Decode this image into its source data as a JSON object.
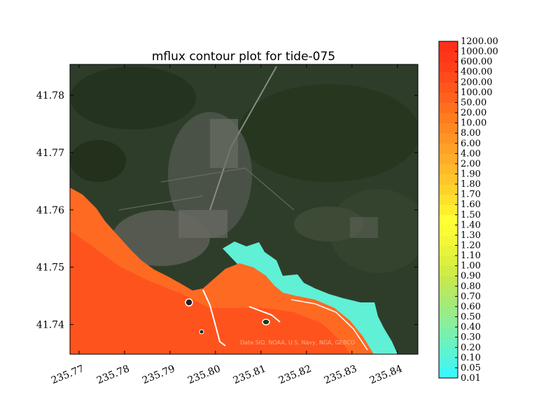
{
  "chart_data": {
    "type": "heatmap",
    "title": "mflux contour plot for tide-075",
    "xlabel": "",
    "ylabel": "",
    "xlim": [
      235.768,
      235.8445
    ],
    "ylim": [
      41.7348,
      41.7854
    ],
    "x_ticks": [
      "235.77",
      "235.78",
      "235.79",
      "235.80",
      "235.81",
      "235.82",
      "235.83",
      "235.84"
    ],
    "x_tick_values": [
      235.77,
      235.78,
      235.79,
      235.8,
      235.81,
      235.82,
      235.83,
      235.84
    ],
    "y_ticks": [
      "41.74",
      "41.75",
      "41.76",
      "41.77",
      "41.78"
    ],
    "y_tick_values": [
      41.74,
      41.75,
      41.76,
      41.77,
      41.78
    ],
    "basemap_attribution": "Data SIO, NOAA, U.S. Navy, NGA, GEBCO",
    "colorbar": {
      "levels": [
        "0.01",
        "0.05",
        "0.10",
        "0.20",
        "0.30",
        "0.40",
        "0.50",
        "0.60",
        "0.70",
        "0.80",
        "0.90",
        "1.00",
        "1.10",
        "1.20",
        "1.30",
        "1.40",
        "1.50",
        "1.60",
        "1.70",
        "1.80",
        "1.90",
        "2.00",
        "4.00",
        "6.00",
        "8.00",
        "10.00",
        "20.00",
        "50.00",
        "100.00",
        "200.00",
        "400.00",
        "600.00",
        "1000.00",
        "1200.00"
      ],
      "colors": [
        "#3ef7f7",
        "#4ef5e4",
        "#5cf3d2",
        "#6cf1bf",
        "#7bf0ad",
        "#8bee9a",
        "#99ec88",
        "#a8ea76",
        "#b6e964",
        "#c4e853",
        "#d1ec45",
        "#ddf03d",
        "#e8f43a",
        "#f2f838",
        "#fbfb36",
        "#ffff33",
        "#ffee2e",
        "#ffe02c",
        "#ffd22b",
        "#ffc52a",
        "#ffb929",
        "#ffad28",
        "#ffa126",
        "#ff9424",
        "#ff8822",
        "#ff7c20",
        "#ff6f1e",
        "#ff621d",
        "#ff561c",
        "#ff4a1b",
        "#ff3f1a",
        "#ff3719",
        "#ff3019"
      ]
    },
    "grid": false,
    "legend": "none"
  }
}
